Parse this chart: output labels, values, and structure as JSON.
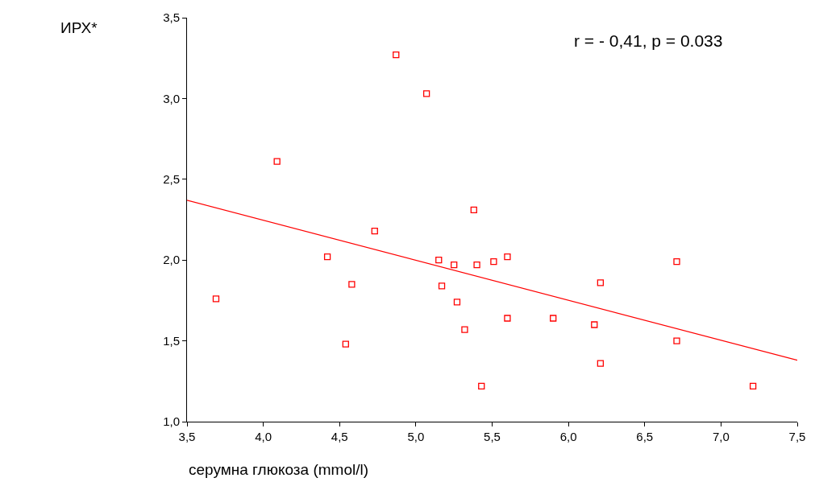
{
  "chart_data": {
    "type": "scatter",
    "xlabel": "серумна глюкоза (mmol/l)",
    "ylabel": "ИРХ*",
    "annotations": [
      "r = - 0,41, p = 0.033"
    ],
    "xlim": [
      3.5,
      7.5
    ],
    "ylim": [
      1.0,
      3.5
    ],
    "xticks": [
      {
        "value": 3.5,
        "label": "3,5"
      },
      {
        "value": 4.0,
        "label": "4,0"
      },
      {
        "value": 4.5,
        "label": "4,5"
      },
      {
        "value": 5.0,
        "label": "5,0"
      },
      {
        "value": 5.5,
        "label": "5,5"
      },
      {
        "value": 6.0,
        "label": "6,0"
      },
      {
        "value": 6.5,
        "label": "6,5"
      },
      {
        "value": 7.0,
        "label": "7,0"
      },
      {
        "value": 7.5,
        "label": "7,5"
      }
    ],
    "yticks": [
      {
        "value": 1.0,
        "label": "1,0"
      },
      {
        "value": 1.5,
        "label": "1,5"
      },
      {
        "value": 2.0,
        "label": "2,0"
      },
      {
        "value": 2.5,
        "label": "2,5"
      },
      {
        "value": 3.0,
        "label": "3,0"
      },
      {
        "value": 3.5,
        "label": "3,5"
      }
    ],
    "series": [
      {
        "marker": "square",
        "color": "#ff0000",
        "x": [
          3.69,
          4.09,
          4.42,
          4.54,
          4.58,
          4.73,
          4.87,
          5.07,
          5.15,
          5.17,
          5.25,
          5.27,
          5.32,
          5.38,
          5.4,
          5.43,
          5.51,
          5.6,
          5.6,
          5.9,
          6.17,
          6.21,
          6.21,
          6.71,
          6.71,
          7.21
        ],
        "values": [
          1.76,
          2.61,
          2.02,
          1.48,
          1.85,
          2.18,
          3.27,
          3.03,
          2.0,
          1.84,
          1.97,
          1.74,
          1.57,
          2.31,
          1.97,
          1.22,
          1.99,
          2.02,
          1.64,
          1.64,
          1.6,
          1.86,
          1.36,
          1.99,
          1.5,
          1.22
        ]
      },
      {
        "type": "line",
        "color": "#ff0000",
        "x": [
          3.5,
          7.5
        ],
        "values": [
          2.37,
          1.38
        ]
      }
    ]
  }
}
